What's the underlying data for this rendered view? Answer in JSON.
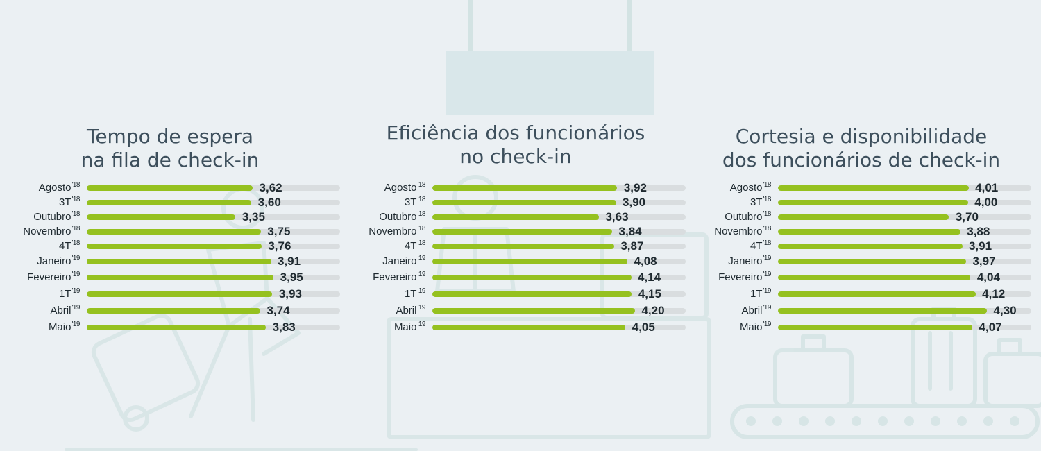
{
  "chart_data": [
    {
      "type": "bar",
      "orientation": "horizontal",
      "title": [
        "Tempo de espera",
        "na fila de check-in"
      ],
      "categories": [
        {
          "label": "Agosto",
          "sup": "'18"
        },
        {
          "label": "3T",
          "sup": "'18"
        },
        {
          "label": "Outubro",
          "sup": "'18"
        },
        {
          "label": "Novembro",
          "sup": "'18"
        },
        {
          "label": "4T",
          "sup": "'18"
        },
        {
          "label": "Janeiro",
          "sup": "'19"
        },
        {
          "label": "Fevereiro",
          "sup": "'19"
        },
        {
          "label": "1T",
          "sup": "'19"
        },
        {
          "label": "Abril",
          "sup": "'19"
        },
        {
          "label": "Maio",
          "sup": "'19"
        }
      ],
      "values": [
        3.62,
        3.6,
        3.35,
        3.75,
        3.76,
        3.91,
        3.95,
        3.93,
        3.74,
        3.83
      ],
      "value_labels": [
        "3,62",
        "3,60",
        "3,35",
        "3,75",
        "3,76",
        "3,91",
        "3,95",
        "3,93",
        "3,74",
        "3,83"
      ],
      "xlim": [
        1,
        5
      ],
      "grid": false,
      "legend": "none"
    },
    {
      "type": "bar",
      "orientation": "horizontal",
      "title": [
        "Eficiência dos funcionários",
        "no check-in"
      ],
      "categories": [
        {
          "label": "Agosto",
          "sup": "'18"
        },
        {
          "label": "3T",
          "sup": "'18"
        },
        {
          "label": "Outubro",
          "sup": "'18"
        },
        {
          "label": "Novembro",
          "sup": "'18"
        },
        {
          "label": "4T",
          "sup": "'18"
        },
        {
          "label": "Janeiro",
          "sup": "'19"
        },
        {
          "label": "Fevereiro",
          "sup": "'19"
        },
        {
          "label": "1T",
          "sup": "'19"
        },
        {
          "label": "Abril",
          "sup": "'19"
        },
        {
          "label": "Maio",
          "sup": "'19"
        }
      ],
      "values": [
        3.92,
        3.9,
        3.63,
        3.84,
        3.87,
        4.08,
        4.14,
        4.15,
        4.2,
        4.05
      ],
      "value_labels": [
        "3,92",
        "3,90",
        "3,63",
        "3,84",
        "3,87",
        "4,08",
        "4,14",
        "4,15",
        "4,20",
        "4,05"
      ],
      "xlim": [
        1,
        5
      ],
      "grid": false,
      "legend": "none"
    },
    {
      "type": "bar",
      "orientation": "horizontal",
      "title": [
        "Cortesia e disponibilidade",
        "dos funcionários de check-in"
      ],
      "categories": [
        {
          "label": "Agosto",
          "sup": "'18"
        },
        {
          "label": "3T",
          "sup": "'18"
        },
        {
          "label": "Outubro",
          "sup": "'18"
        },
        {
          "label": "Novembro",
          "sup": "'18"
        },
        {
          "label": "4T",
          "sup": "'18"
        },
        {
          "label": "Janeiro",
          "sup": "'19"
        },
        {
          "label": "Fevereiro",
          "sup": "'19"
        },
        {
          "label": "1T",
          "sup": "'19"
        },
        {
          "label": "Abril",
          "sup": "'19"
        },
        {
          "label": "Maio",
          "sup": "'19"
        }
      ],
      "values": [
        4.01,
        4.0,
        3.7,
        3.88,
        3.91,
        3.97,
        4.04,
        4.12,
        4.3,
        4.07
      ],
      "value_labels": [
        "4,01",
        "4,00",
        "3,70",
        "3,88",
        "3,91",
        "3,97",
        "4,04",
        "4,12",
        "4,30",
        "4,07"
      ],
      "xlim": [
        1,
        5
      ],
      "grid": false,
      "legend": "none"
    }
  ],
  "colors": {
    "background": "#ebf0f3",
    "bar_fill": "#95c11f",
    "bar_track": "#d9dddf",
    "title_text": "#3d4f5c",
    "label_text": "#1f2a30",
    "illustration": "#d3e3e3"
  },
  "background_icons": [
    "hanging-sign-icon",
    "traveler-with-suitcase-icon",
    "check-in-desk-agent-icon",
    "baggage-conveyor-icon"
  ]
}
